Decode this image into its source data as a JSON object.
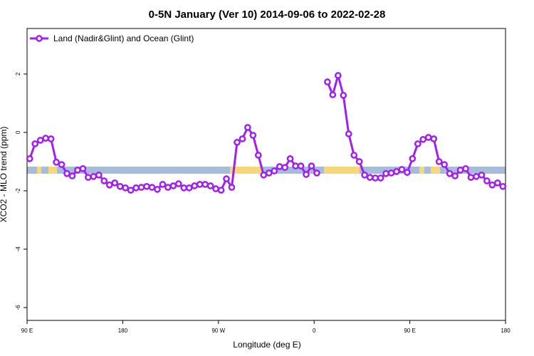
{
  "chart_data": {
    "type": "line",
    "title": "0-5N January (Ver 10)   2014-09-06 to 2022-02-28",
    "x_label": "Longitude (deg E)",
    "y_label": "XCO2 - MLO trend (ppm)",
    "legend_position": "upper left",
    "xlim": [
      90,
      540
    ],
    "xticks": [
      {
        "value": 90,
        "label": "90 E"
      },
      180,
      {
        "value": 270,
        "label": "90 W"
      },
      {
        "value": 360,
        "label": "0"
      },
      {
        "value": 450,
        "label": "90 E"
      },
      {
        "value": 540,
        "label": "180"
      }
    ],
    "ylim": [
      -6.44,
      3.56
    ],
    "yticks": [
      -6,
      -4,
      -2,
      0,
      2
    ],
    "x": [
      92.5,
      97.5,
      102.5,
      107.5,
      112.5,
      117.5,
      122.5,
      127.5,
      132.5,
      137.5,
      142.5,
      147.5,
      152.5,
      157.5,
      162.5,
      167.5,
      172.5,
      177.5,
      182.5,
      187.5,
      192.5,
      197.5,
      202.5,
      207.5,
      212.5,
      217.5,
      222.5,
      227.5,
      232.5,
      237.5,
      242.5,
      247.5,
      252.5,
      257.5,
      262.5,
      267.5,
      272.5,
      277.5,
      282.5,
      287.5,
      292.5,
      297.5,
      302.5,
      307.5,
      312.5,
      317.5,
      322.5,
      327.5,
      332.5,
      337.5,
      342.5,
      347.5,
      352.5,
      357.5,
      362.5,
      367.5,
      372.5,
      377.5,
      382.5,
      387.5,
      392.5,
      397.5,
      402.5,
      407.5,
      412.5,
      417.5,
      422.5,
      427.5,
      432.5,
      437.5,
      442.5,
      447.5,
      452.5,
      457.5,
      462.5,
      467.5,
      472.5,
      477.5,
      482.5,
      487.5,
      492.5,
      497.5,
      502.5,
      507.5,
      512.5,
      517.5,
      522.5,
      527.5,
      532.5,
      537.5
    ],
    "series": [
      {
        "name": "Land (Nadir&Glint) and Ocean (Glint)",
        "color": "#a020f0",
        "values": [
          -0.9,
          -0.39,
          -0.27,
          -0.2,
          -0.22,
          -1.02,
          -1.1,
          -1.41,
          -1.49,
          -1.29,
          -1.24,
          -1.54,
          -1.51,
          -1.46,
          -1.66,
          -1.8,
          -1.73,
          -1.85,
          -1.9,
          -1.98,
          -1.9,
          -1.88,
          -1.85,
          -1.88,
          -1.95,
          -1.78,
          -1.88,
          -1.83,
          -1.76,
          -1.9,
          -1.9,
          -1.83,
          -1.78,
          -1.78,
          -1.83,
          -1.93,
          -1.98,
          -1.59,
          -1.88,
          -0.34,
          -0.22,
          0.17,
          -0.1,
          -0.78,
          -1.46,
          -1.39,
          -1.32,
          -1.17,
          -1.2,
          -0.9,
          -1.15,
          -1.15,
          -1.44,
          -1.15,
          -1.39,
          null,
          1.73,
          1.29,
          1.95,
          1.27,
          -0.05,
          -0.78,
          -1.0,
          -1.46,
          -1.54,
          -1.56,
          -1.56,
          -1.41,
          -1.39,
          -1.34,
          -1.27,
          -1.37,
          -0.9,
          -0.39,
          -0.24,
          -0.17,
          -0.22,
          -1.0,
          -1.1,
          -1.41,
          -1.49,
          -1.29,
          -1.24,
          -1.54,
          -1.51,
          -1.46,
          -1.66,
          -1.8,
          -1.73,
          -1.85
        ]
      }
    ]
  }
}
